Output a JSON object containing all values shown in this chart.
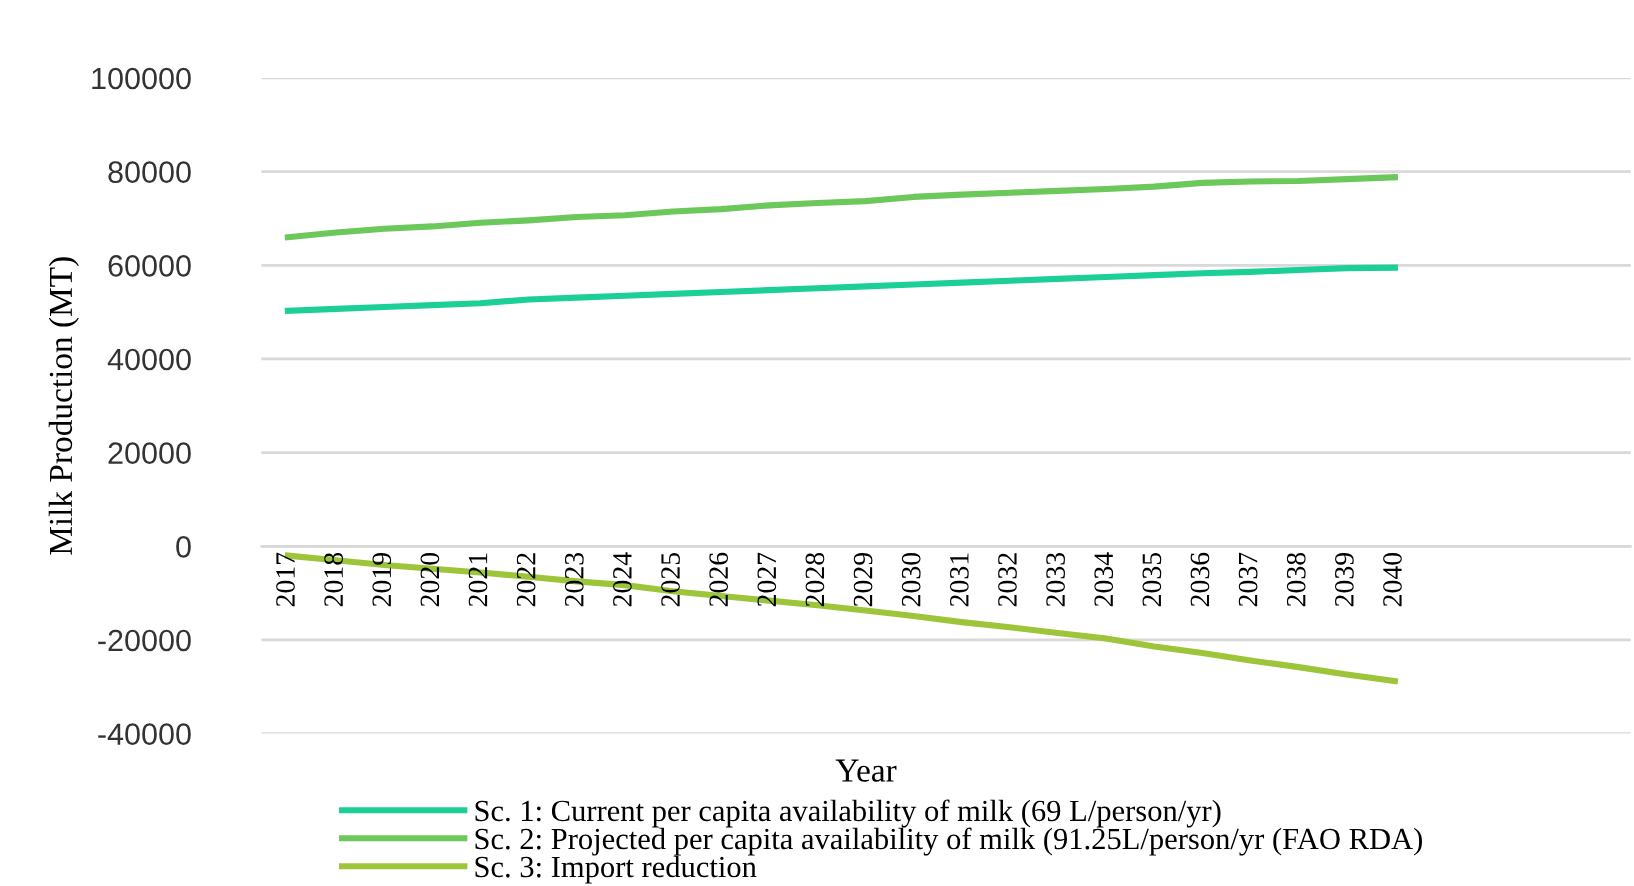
{
  "chart_data": {
    "type": "line",
    "ylabel": "Milk Production (MT)",
    "xlabel": "Year",
    "categories": [
      "2017",
      "2018",
      "2019",
      "2020",
      "2021",
      "2022",
      "2023",
      "2024",
      "2025",
      "2026",
      "2027",
      "2028",
      "2029",
      "2030",
      "2031",
      "2032",
      "2033",
      "2034",
      "2035",
      "2036",
      "2037",
      "2038",
      "2039",
      "2040"
    ],
    "series": [
      {
        "name": "Sc. 1: Current per capita availability of milk (69 L/person/yr)",
        "color": "#1ccf96",
        "values": [
          50300,
          50700,
          51100,
          51500,
          51900,
          52700,
          53100,
          53500,
          53900,
          54300,
          54700,
          55100,
          55500,
          55900,
          56300,
          56700,
          57100,
          57500,
          57900,
          58300,
          58600,
          59000,
          59400,
          59500
        ]
      },
      {
        "name": "Sc. 2: Projected per capita availability of milk (91.25L/person/yr (FAO RDA)",
        "color": "#6cc85a",
        "values": [
          66000,
          67000,
          67800,
          68300,
          69100,
          69600,
          70300,
          70700,
          71500,
          72000,
          72800,
          73300,
          73700,
          74600,
          75100,
          75500,
          75900,
          76300,
          76800,
          77600,
          77900,
          78000,
          78400,
          78800
        ]
      },
      {
        "name": "Sc. 3: Import reduction",
        "color": "#9dc53a",
        "values": [
          -2000,
          -3000,
          -4000,
          -4800,
          -5600,
          -6500,
          -7500,
          -8300,
          -9600,
          -10600,
          -11600,
          -12600,
          -13700,
          -14900,
          -16200,
          -17300,
          -18500,
          -19700,
          -21400,
          -22800,
          -24400,
          -25800,
          -27400,
          -28800
        ]
      }
    ],
    "ylim": [
      -40000,
      100000
    ],
    "yticks": [
      -40000,
      -20000,
      0,
      20000,
      40000,
      60000,
      80000,
      100000
    ],
    "grid": "y",
    "legend": "bottom",
    "marker": "none",
    "line_style": "solid"
  }
}
